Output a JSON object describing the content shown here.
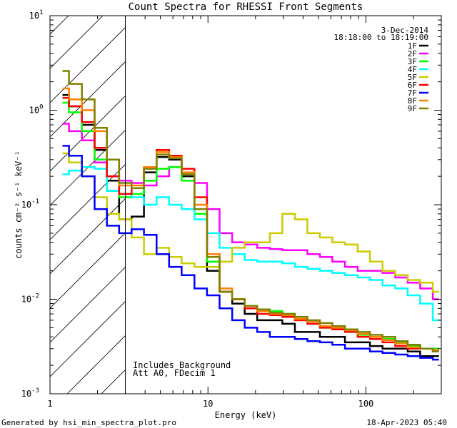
{
  "chart_data": {
    "type": "line",
    "title": "Count Spectra for RHESSI Front Segments",
    "xlabel": "Energy (keV)",
    "ylabel": "counts cm⁻² s⁻¹ keV⁻¹",
    "x_scale": "log",
    "y_scale": "log",
    "xlim": [
      1,
      300
    ],
    "ylim": [
      0.001,
      10
    ],
    "x_ticks": [
      {
        "value": 1,
        "label": "1"
      },
      {
        "value": 10,
        "label": "10"
      },
      {
        "value": 100,
        "label": "100"
      }
    ],
    "y_ticks": [
      {
        "value": 0.001,
        "base": "10",
        "exp": "-3"
      },
      {
        "value": 0.01,
        "base": "10",
        "exp": "-2"
      },
      {
        "value": 0.1,
        "base": "10",
        "exp": "-1"
      },
      {
        "value": 1,
        "base": "10",
        "exp": "0"
      },
      {
        "value": 10,
        "base": "10",
        "exp": "1"
      }
    ],
    "date": "3-Dec-2014",
    "time_range": "18:18:00 to 18:19:00",
    "hatched_region": {
      "x_max": 3
    },
    "annotations": [
      "Includes Background",
      "Att A0, FDecim 1"
    ],
    "legend_position": "top-right",
    "series": [
      {
        "name": "1F",
        "color": "#000000",
        "x": [
          1.2,
          1.45,
          1.75,
          2.1,
          2.5,
          3.0,
          3.6,
          4.3,
          5.2,
          6.2,
          7.5,
          9.0,
          10.8,
          13,
          15.6,
          18.7,
          22.5,
          27,
          32.4,
          38.9,
          46.7,
          56,
          67,
          81,
          97,
          116,
          140,
          168,
          201,
          242,
          290
        ],
        "y": [
          1.45,
          1.1,
          0.7,
          0.38,
          0.18,
          0.07,
          0.075,
          0.22,
          0.32,
          0.3,
          0.2,
          0.08,
          0.02,
          0.012,
          0.009,
          0.007,
          0.006,
          0.006,
          0.0055,
          0.0045,
          0.0045,
          0.004,
          0.004,
          0.0035,
          0.0035,
          0.0032,
          0.003,
          0.003,
          0.0028,
          0.0025,
          0.0025
        ]
      },
      {
        "name": "2F",
        "color": "#ff00ff",
        "x": [
          1.2,
          1.45,
          1.75,
          2.1,
          2.5,
          3.0,
          3.6,
          4.3,
          5.2,
          6.2,
          7.5,
          9.0,
          10.8,
          13,
          15.6,
          18.7,
          22.5,
          27,
          32.4,
          38.9,
          46.7,
          56,
          67,
          81,
          97,
          116,
          140,
          168,
          201,
          242,
          290
        ],
        "y": [
          0.72,
          0.6,
          0.48,
          0.28,
          0.2,
          0.18,
          0.17,
          0.16,
          0.2,
          0.25,
          0.21,
          0.17,
          0.09,
          0.05,
          0.04,
          0.038,
          0.035,
          0.034,
          0.033,
          0.033,
          0.03,
          0.028,
          0.025,
          0.022,
          0.02,
          0.02,
          0.019,
          0.017,
          0.015,
          0.013,
          0.01
        ]
      },
      {
        "name": "3F",
        "color": "#00ff00",
        "x": [
          1.2,
          1.45,
          1.75,
          2.1,
          2.5,
          3.0,
          3.6,
          4.3,
          5.2,
          6.2,
          7.5,
          9.0,
          10.8,
          13,
          15.6,
          18.7,
          22.5,
          27,
          32.4,
          38.9,
          46.7,
          56,
          67,
          81,
          97,
          116,
          140,
          168,
          201,
          242,
          290
        ],
        "y": [
          1.2,
          0.95,
          0.6,
          0.3,
          0.14,
          0.12,
          0.13,
          0.18,
          0.24,
          0.25,
          0.18,
          0.08,
          0.025,
          0.012,
          0.01,
          0.008,
          0.0075,
          0.0075,
          0.007,
          0.006,
          0.0055,
          0.005,
          0.0048,
          0.0045,
          0.0042,
          0.004,
          0.0038,
          0.0035,
          0.0032,
          0.003,
          0.003
        ]
      },
      {
        "name": "4F",
        "color": "#00ffff",
        "x": [
          1.2,
          1.45,
          1.75,
          2.1,
          2.5,
          3.0,
          3.6,
          4.3,
          5.2,
          6.2,
          7.5,
          9.0,
          10.8,
          13,
          15.6,
          18.7,
          22.5,
          27,
          32.4,
          38.9,
          46.7,
          56,
          67,
          81,
          97,
          116,
          140,
          168,
          201,
          242,
          290
        ],
        "y": [
          0.21,
          0.23,
          0.25,
          0.24,
          0.14,
          0.13,
          0.12,
          0.1,
          0.12,
          0.1,
          0.09,
          0.07,
          0.05,
          0.035,
          0.03,
          0.026,
          0.025,
          0.025,
          0.024,
          0.022,
          0.021,
          0.02,
          0.019,
          0.018,
          0.017,
          0.016,
          0.014,
          0.013,
          0.011,
          0.009,
          0.006
        ]
      },
      {
        "name": "5F",
        "color": "#cccc00",
        "x": [
          1.2,
          1.45,
          1.75,
          2.1,
          2.5,
          3.0,
          3.6,
          4.3,
          5.2,
          6.2,
          7.5,
          9.0,
          10.8,
          13,
          15.6,
          18.7,
          22.5,
          27,
          32.4,
          38.9,
          46.7,
          56,
          67,
          81,
          97,
          116,
          140,
          168,
          201,
          242,
          290
        ],
        "y": [
          0.35,
          0.28,
          0.2,
          0.12,
          0.08,
          0.07,
          0.045,
          0.03,
          0.035,
          0.028,
          0.024,
          0.022,
          0.022,
          0.025,
          0.035,
          0.04,
          0.04,
          0.05,
          0.08,
          0.07,
          0.05,
          0.045,
          0.04,
          0.038,
          0.032,
          0.025,
          0.02,
          0.018,
          0.016,
          0.015,
          0.012
        ]
      },
      {
        "name": "6F",
        "color": "#ff0000",
        "x": [
          1.2,
          1.45,
          1.75,
          2.1,
          2.5,
          3.0,
          3.6,
          4.3,
          5.2,
          6.2,
          7.5,
          9.0,
          10.8,
          13,
          15.6,
          18.7,
          22.5,
          27,
          32.4,
          38.9,
          46.7,
          56,
          67,
          81,
          97,
          116,
          140,
          168,
          201,
          242,
          290
        ],
        "y": [
          1.35,
          1.1,
          0.75,
          0.4,
          0.2,
          0.13,
          0.15,
          0.25,
          0.38,
          0.33,
          0.24,
          0.12,
          0.03,
          0.012,
          0.01,
          0.008,
          0.007,
          0.0068,
          0.0065,
          0.006,
          0.0055,
          0.005,
          0.0048,
          0.0045,
          0.004,
          0.0038,
          0.0035,
          0.0032,
          0.003,
          0.003,
          0.0028
        ]
      },
      {
        "name": "7F",
        "color": "#0000ff",
        "x": [
          1.2,
          1.45,
          1.75,
          2.1,
          2.5,
          3.0,
          3.6,
          4.3,
          5.2,
          6.2,
          7.5,
          9.0,
          10.8,
          13,
          15.6,
          18.7,
          22.5,
          27,
          32.4,
          38.9,
          46.7,
          56,
          67,
          81,
          97,
          116,
          140,
          168,
          201,
          242,
          290
        ],
        "y": [
          0.42,
          0.33,
          0.2,
          0.09,
          0.06,
          0.05,
          0.055,
          0.048,
          0.03,
          0.022,
          0.018,
          0.013,
          0.011,
          0.008,
          0.006,
          0.005,
          0.0045,
          0.004,
          0.004,
          0.0038,
          0.0036,
          0.0035,
          0.0033,
          0.003,
          0.003,
          0.0028,
          0.0027,
          0.0026,
          0.0025,
          0.0024,
          0.0023
        ]
      },
      {
        "name": "8F",
        "color": "#ff8000",
        "x": [
          1.2,
          1.45,
          1.75,
          2.1,
          2.5,
          3.0,
          3.6,
          4.3,
          5.2,
          6.2,
          7.5,
          9.0,
          10.8,
          13,
          15.6,
          18.7,
          22.5,
          27,
          32.4,
          38.9,
          46.7,
          56,
          67,
          81,
          97,
          116,
          140,
          168,
          201,
          242,
          290
        ],
        "y": [
          1.7,
          1.3,
          1.0,
          0.6,
          0.3,
          0.16,
          0.16,
          0.25,
          0.36,
          0.32,
          0.22,
          0.1,
          0.03,
          0.013,
          0.01,
          0.0085,
          0.0075,
          0.007,
          0.0068,
          0.0062,
          0.0058,
          0.0052,
          0.005,
          0.0047,
          0.0043,
          0.004,
          0.0037,
          0.0034,
          0.0031,
          0.003,
          0.0029
        ]
      },
      {
        "name": "9F",
        "color": "#808000",
        "x": [
          1.2,
          1.45,
          1.75,
          2.1,
          2.5,
          3.0,
          3.6,
          4.3,
          5.2,
          6.2,
          7.5,
          9.0,
          10.8,
          13,
          15.6,
          18.7,
          22.5,
          27,
          32.4,
          38.9,
          46.7,
          56,
          67,
          81,
          97,
          116,
          140,
          168,
          201,
          242,
          290
        ],
        "y": [
          2.6,
          1.9,
          1.3,
          0.65,
          0.3,
          0.17,
          0.15,
          0.24,
          0.34,
          0.31,
          0.21,
          0.09,
          0.028,
          0.012,
          0.01,
          0.0085,
          0.0078,
          0.0072,
          0.007,
          0.0065,
          0.006,
          0.0056,
          0.0052,
          0.0048,
          0.0045,
          0.0042,
          0.004,
          0.0036,
          0.0033,
          0.003,
          0.0028
        ]
      }
    ]
  },
  "footer": {
    "left": "Generated by hsi_min_spectra_plot.pro",
    "right": "18-Apr-2023 05:40"
  }
}
